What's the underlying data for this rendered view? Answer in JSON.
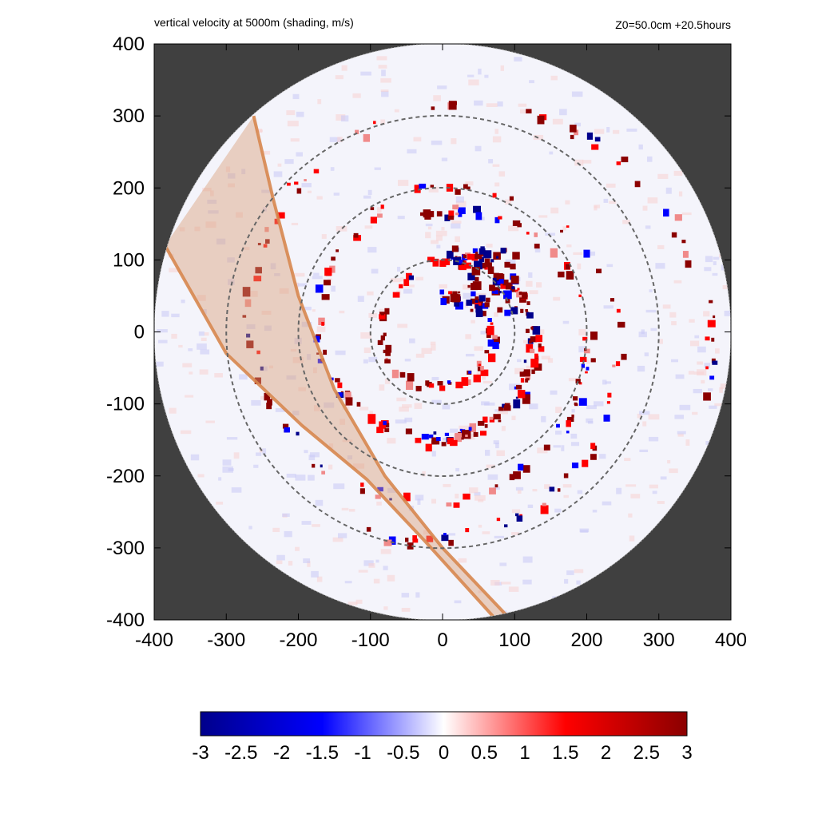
{
  "chart_data": {
    "type": "heatmap",
    "title": "vertical velocity at 5000m (shading, m/s)",
    "subtitle": "Z0=50.0cm  +20.5hours",
    "xlabel": "",
    "ylabel": "",
    "xlim": [
      -400,
      400
    ],
    "ylim": [
      -400,
      400
    ],
    "x_ticks": [
      "-400",
      "-300",
      "-200",
      "-100",
      "0",
      "100",
      "200",
      "300",
      "400"
    ],
    "y_ticks": [
      "400",
      "300",
      "200",
      "100",
      "0",
      "-100",
      "-200",
      "-300",
      "-400"
    ],
    "grid": false,
    "domain_radius": 400,
    "range_rings": [
      100,
      200,
      300
    ],
    "swath_polygon": [
      [
        -262,
        300
      ],
      [
        -235,
        185
      ],
      [
        -200,
        50
      ],
      [
        -150,
        -80
      ],
      [
        -80,
        -200
      ],
      [
        0,
        -300
      ],
      [
        90,
        -395
      ],
      [
        70,
        -395
      ],
      [
        -25,
        -290
      ],
      [
        -105,
        -205
      ],
      [
        -195,
        -130
      ],
      [
        -300,
        -30
      ],
      [
        -385,
        120
      ]
    ],
    "swath_edges": [
      [
        [
          -262,
          300
        ],
        [
          -235,
          185
        ],
        [
          -200,
          50
        ],
        [
          -150,
          -80
        ],
        [
          -80,
          -200
        ],
        [
          0,
          -300
        ],
        [
          90,
          -395
        ]
      ],
      [
        [
          -385,
          120
        ],
        [
          -300,
          -30
        ],
        [
          -195,
          -130
        ],
        [
          -105,
          -205
        ],
        [
          -25,
          -290
        ],
        [
          70,
          -395
        ]
      ]
    ],
    "colorbar": {
      "min": -3,
      "max": 3,
      "ticks": [
        "-3",
        "-2.5",
        "-2",
        "-1.5",
        "-1",
        "-0.5",
        "0",
        "0.5",
        "1",
        "1.5",
        "2",
        "2.5",
        "3"
      ]
    },
    "colors": {
      "background_outside": "#404040",
      "ring_stroke": "#666666",
      "swath_fill": "#d9a07a",
      "swath_edge": "#d7874f",
      "negative_max": "#00008b",
      "negative_mid": "#0000ff",
      "zero": "#ffffff",
      "positive_mid": "#ff0000",
      "positive_max": "#8b0000"
    }
  }
}
